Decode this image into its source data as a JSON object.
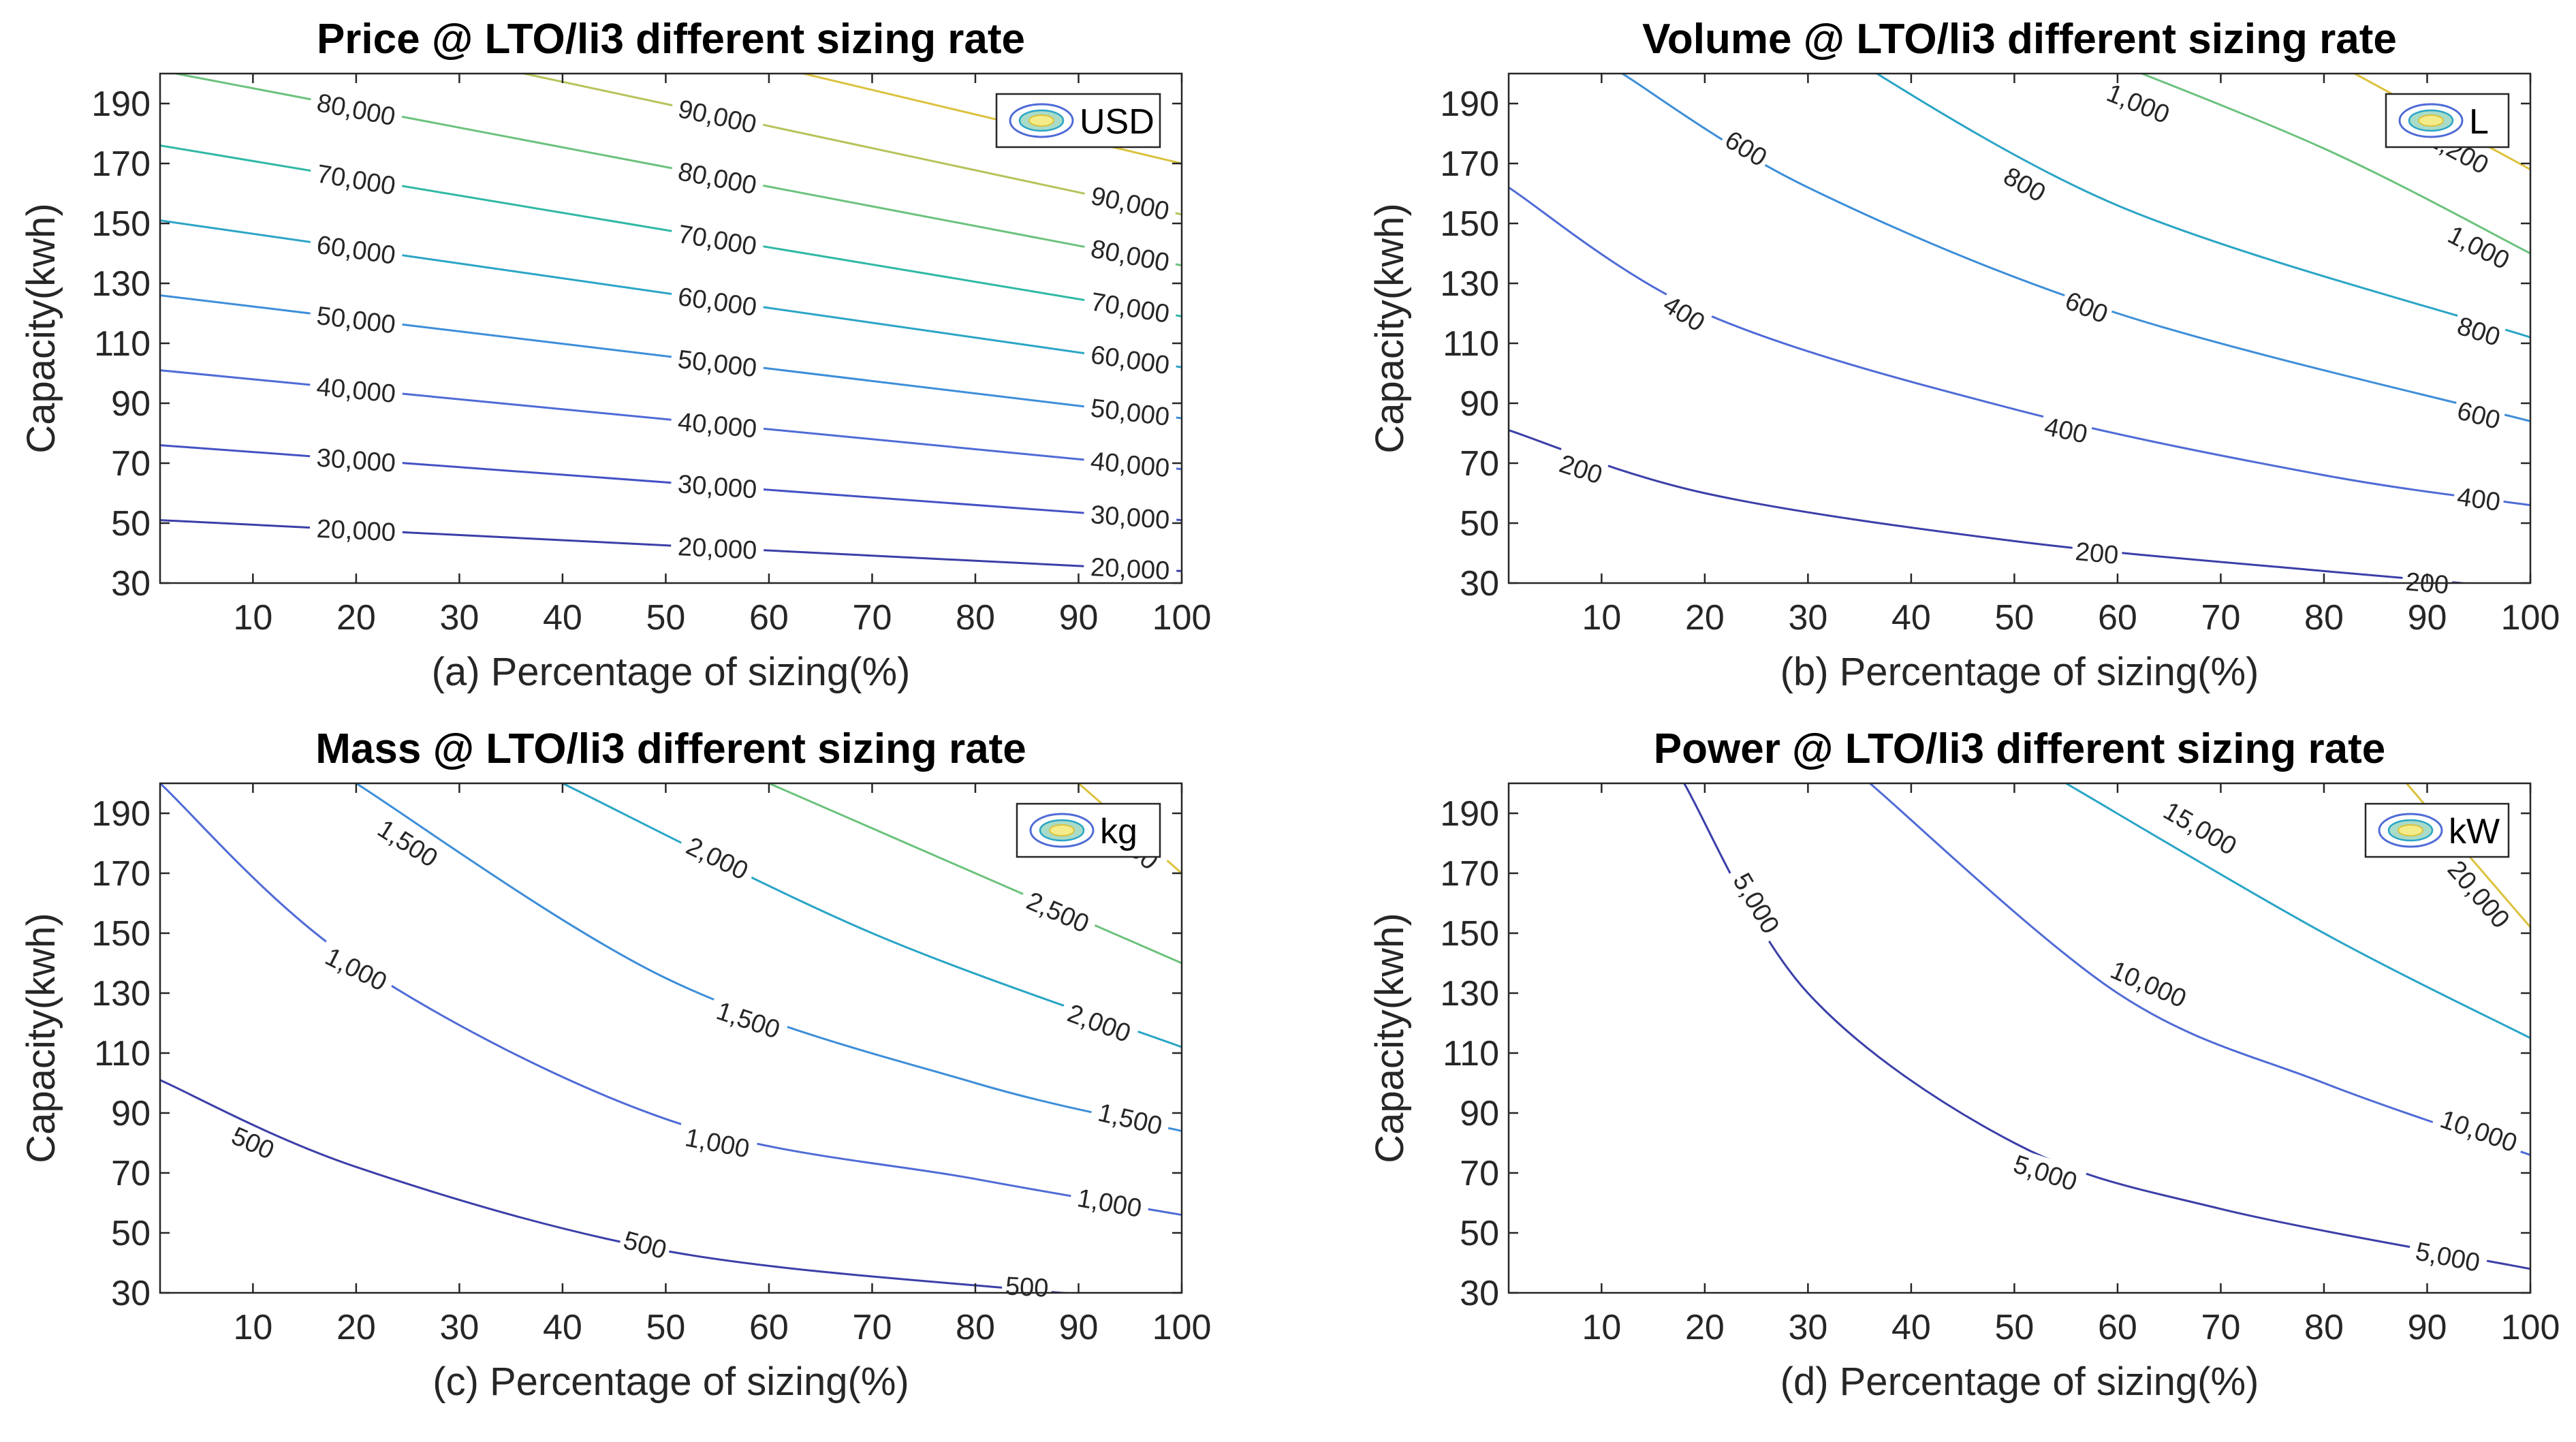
{
  "chart_data": [
    {
      "type": "contour",
      "title": "Price @ LTO/li3 different sizing rate",
      "xlabel": "(a) Percentage of sizing(%)",
      "ylabel": "Capacity(kwh)",
      "xlim": [
        1,
        100
      ],
      "ylim": [
        30,
        200
      ],
      "xticks": [
        10,
        20,
        30,
        40,
        50,
        60,
        70,
        80,
        90,
        100
      ],
      "yticks": [
        30,
        50,
        70,
        90,
        110,
        130,
        150,
        170,
        190
      ],
      "legend": "USD",
      "legend_position": "top-right",
      "levels": [
        {
          "level": 20000,
          "label": "20,000",
          "color": "#3b3fa8",
          "points": [
            [
              1,
              51
            ],
            [
              100,
              34
            ]
          ],
          "labels_at": [
            [
              20,
              47.6
            ],
            [
              55,
              41.6
            ],
            [
              95,
              34.8
            ]
          ]
        },
        {
          "level": 30000,
          "label": "30,000",
          "color": "#4452c4",
          "points": [
            [
              1,
              76
            ],
            [
              100,
              51
            ]
          ],
          "labels_at": [
            [
              20,
              71
            ],
            [
              55,
              62.2
            ],
            [
              95,
              52
            ]
          ]
        },
        {
          "level": 40000,
          "label": "40,000",
          "color": "#4f6bd6",
          "points": [
            [
              1,
              101
            ],
            [
              100,
              68
            ]
          ],
          "labels_at": [
            [
              20,
              94.4
            ],
            [
              55,
              82.7
            ],
            [
              95,
              69.6
            ]
          ]
        },
        {
          "level": 50000,
          "label": "50,000",
          "color": "#3d8ed8",
          "points": [
            [
              1,
              126
            ],
            [
              100,
              85
            ]
          ],
          "labels_at": [
            [
              20,
              117.8
            ],
            [
              55,
              103.3
            ],
            [
              95,
              87
            ]
          ]
        },
        {
          "level": 60000,
          "label": "60,000",
          "color": "#2aa5c6",
          "points": [
            [
              1,
              151
            ],
            [
              100,
              102
            ]
          ],
          "labels_at": [
            [
              20,
              141.2
            ],
            [
              55,
              123.9
            ],
            [
              95,
              104.5
            ]
          ]
        },
        {
          "level": 70000,
          "label": "70,000",
          "color": "#2fb8a5",
          "points": [
            [
              1,
              176
            ],
            [
              100,
              119
            ]
          ],
          "labels_at": [
            [
              20,
              164.6
            ],
            [
              55,
              144.5
            ],
            [
              95,
              121.9
            ]
          ]
        },
        {
          "level": 80000,
          "label": "80,000",
          "color": "#6cc27d",
          "points": [
            [
              1,
              201
            ],
            [
              100,
              136
            ]
          ],
          "labels_at": [
            [
              20,
              188
            ],
            [
              55,
              165.1
            ],
            [
              95,
              139.3
            ]
          ]
        },
        {
          "level": 90000,
          "label": "90,000",
          "color": "#b7c35a",
          "points": [
            [
              1,
              226
            ],
            [
              100,
              153
            ]
          ],
          "labels_at": [
            [
              55,
              185.7
            ],
            [
              95,
              156.7
            ]
          ]
        },
        {
          "level": 100000,
          "label": "",
          "color": "#dcc23e",
          "points": [
            [
              1,
              251
            ],
            [
              100,
              170
            ]
          ],
          "labels_at": []
        }
      ]
    },
    {
      "type": "contour",
      "title": "Volume @ LTO/li3 different sizing rate",
      "xlabel": "(b) Percentage of sizing(%)",
      "ylabel": "Capacity(kwh)",
      "xlim": [
        1,
        100
      ],
      "ylim": [
        30,
        200
      ],
      "xticks": [
        10,
        20,
        30,
        40,
        50,
        60,
        70,
        80,
        90,
        100
      ],
      "yticks": [
        30,
        50,
        70,
        90,
        110,
        130,
        150,
        170,
        190
      ],
      "legend": "L",
      "legend_position": "top-right",
      "levels": [
        {
          "level": 200,
          "label": "200",
          "color": "#3b3fa8",
          "points": [
            [
              1,
              81
            ],
            [
              20,
              60
            ],
            [
              50,
              44
            ],
            [
              80,
              34
            ],
            [
              100,
              28
            ]
          ],
          "labels_at": [
            [
              8,
              68
            ],
            [
              58,
              40
            ],
            [
              90,
              30
            ]
          ]
        },
        {
          "level": 400,
          "label": "400",
          "color": "#4f6bd6",
          "points": [
            [
              1,
              162
            ],
            [
              20,
              120
            ],
            [
              50,
              88
            ],
            [
              80,
              66
            ],
            [
              100,
              56
            ]
          ],
          "labels_at": [
            [
              18,
              120
            ],
            [
              55,
              81
            ],
            [
              95,
              58
            ]
          ]
        },
        {
          "level": 600,
          "label": "600",
          "color": "#3d8ed8",
          "points": [
            [
              12,
              200
            ],
            [
              30,
              162
            ],
            [
              60,
              120
            ],
            [
              100,
              84
            ]
          ],
          "labels_at": [
            [
              24,
              175
            ],
            [
              57,
              122
            ],
            [
              95,
              86
            ]
          ]
        },
        {
          "level": 800,
          "label": "800",
          "color": "#2aa5c6",
          "points": [
            [
              30,
              214
            ],
            [
              60,
              156
            ],
            [
              100,
              112
            ]
          ],
          "labels_at": [
            [
              51,
              163
            ],
            [
              95,
              114
            ]
          ]
        },
        {
          "level": 1000,
          "label": "1,000",
          "color": "#6cc27d",
          "points": [
            [
              55,
              210
            ],
            [
              80,
              175
            ],
            [
              100,
              140
            ]
          ],
          "labels_at": [
            [
              62,
              190
            ],
            [
              95,
              142
            ]
          ]
        },
        {
          "level": 1200,
          "label": "1,200",
          "color": "#dcc23e",
          "points": [
            [
              75,
              215
            ],
            [
              100,
              168
            ]
          ],
          "labels_at": [
            [
              93,
              174
            ]
          ]
        }
      ]
    },
    {
      "type": "contour",
      "title": "Mass @ LTO/li3 different sizing rate",
      "xlabel": "(c) Percentage of sizing(%)",
      "ylabel": "Capacity(kwh)",
      "xlim": [
        1,
        100
      ],
      "ylim": [
        30,
        200
      ],
      "xticks": [
        10,
        20,
        30,
        40,
        50,
        60,
        70,
        80,
        90,
        100
      ],
      "yticks": [
        30,
        50,
        70,
        90,
        110,
        130,
        150,
        170,
        190
      ],
      "legend": "kg",
      "legend_position": "top-right",
      "levels": [
        {
          "level": 500,
          "label": "500",
          "color": "#3b3fa8",
          "points": [
            [
              1,
              101
            ],
            [
              20,
              72
            ],
            [
              50,
              44
            ],
            [
              85,
              31
            ],
            [
              100,
              28
            ]
          ],
          "labels_at": [
            [
              10,
              80
            ],
            [
              48,
              46
            ],
            [
              85,
              32
            ]
          ]
        },
        {
          "level": 1000,
          "label": "1,000",
          "color": "#4f6bd6",
          "points": [
            [
              1,
              200
            ],
            [
              20,
              140
            ],
            [
              50,
              88
            ],
            [
              80,
              68
            ],
            [
              100,
              56
            ]
          ],
          "labels_at": [
            [
              20,
              138
            ],
            [
              55,
              80
            ],
            [
              93,
              60
            ]
          ]
        },
        {
          "level": 1500,
          "label": "1,500",
          "color": "#3d8ed8",
          "points": [
            [
              20,
              200
            ],
            [
              50,
              135
            ],
            [
              80,
              100
            ],
            [
              100,
              84
            ]
          ],
          "labels_at": [
            [
              25,
              180
            ],
            [
              58,
              121
            ],
            [
              95,
              88
            ]
          ]
        },
        {
          "level": 2000,
          "label": "2,000",
          "color": "#2aa5c6",
          "points": [
            [
              40,
              200
            ],
            [
              70,
              150
            ],
            [
              100,
              112
            ]
          ],
          "labels_at": [
            [
              55,
              175
            ],
            [
              92,
              120
            ]
          ]
        },
        {
          "level": 2500,
          "label": "2,500",
          "color": "#6cc27d",
          "points": [
            [
              60,
              200
            ],
            [
              100,
              140
            ]
          ],
          "labels_at": [
            [
              88,
              157
            ]
          ]
        },
        {
          "level": 3000,
          "label": "3,000",
          "color": "#dcc23e",
          "points": [
            [
              85,
              215
            ],
            [
              100,
              170
            ]
          ],
          "labels_at": [
            [
              95,
              180
            ]
          ]
        }
      ]
    },
    {
      "type": "contour",
      "title": "Power @ LTO/li3 different sizing rate",
      "xlabel": "(d) Percentage of sizing(%)",
      "ylabel": "Capacity(kwh)",
      "xlim": [
        1,
        100
      ],
      "ylim": [
        30,
        200
      ],
      "xticks": [
        10,
        20,
        30,
        40,
        50,
        60,
        70,
        80,
        90,
        100
      ],
      "yticks": [
        30,
        50,
        70,
        90,
        110,
        130,
        150,
        170,
        190
      ],
      "legend": "kW",
      "legend_position": "top-right",
      "levels": [
        {
          "level": 5000,
          "label": "5,000",
          "color": "#3b3fa8",
          "points": [
            [
              18,
              200
            ],
            [
              30,
              130
            ],
            [
              50,
              80
            ],
            [
              70,
              58
            ],
            [
              100,
              38
            ]
          ],
          "labels_at": [
            [
              25,
              160
            ],
            [
              53,
              70
            ],
            [
              92,
              42
            ]
          ]
        },
        {
          "level": 10000,
          "label": "10,000",
          "color": "#4f6bd6",
          "points": [
            [
              36,
              200
            ],
            [
              60,
              130
            ],
            [
              80,
              100
            ],
            [
              100,
              76
            ]
          ],
          "labels_at": [
            [
              63,
              133
            ],
            [
              95,
              84
            ]
          ]
        },
        {
          "level": 15000,
          "label": "15,000",
          "color": "#2aa5c6",
          "points": [
            [
              55,
              200
            ],
            [
              80,
              150
            ],
            [
              100,
              115
            ]
          ],
          "labels_at": [
            [
              68,
              185
            ]
          ]
        },
        {
          "level": 20000,
          "label": "20,000",
          "color": "#dcc23e",
          "points": [
            [
              88,
              200
            ],
            [
              100,
              152
            ]
          ],
          "labels_at": [
            [
              95,
              163
            ]
          ]
        }
      ]
    }
  ]
}
